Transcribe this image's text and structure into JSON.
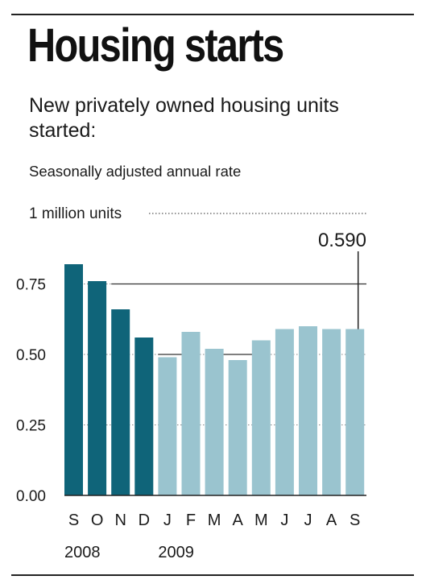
{
  "chart_data": {
    "type": "bar",
    "title": "Housing starts",
    "subtitle": "New privately owned housing units started:",
    "note": "Seasonally adjusted annual rate",
    "top_label": "1 million units",
    "categories": [
      "S",
      "O",
      "N",
      "D",
      "J",
      "F",
      "M",
      "A",
      "M",
      "J",
      "J",
      "A",
      "S"
    ],
    "year_labels": [
      "2008",
      "2009"
    ],
    "values": [
      0.82,
      0.76,
      0.66,
      0.56,
      0.49,
      0.58,
      0.52,
      0.48,
      0.55,
      0.59,
      0.6,
      0.59,
      0.59
    ],
    "annotation": {
      "label": "0.590",
      "category_index": 12
    },
    "yticks": [
      {
        "value": 0.75,
        "label": "0.75"
      },
      {
        "value": 0.5,
        "label": "0.50"
      },
      {
        "value": 0.25,
        "label": "0.25"
      },
      {
        "value": 0.0,
        "label": "0.00"
      }
    ],
    "ylim": [
      0,
      1
    ],
    "grid": true,
    "colors": {
      "2008": "#0f6479",
      "2009": "#9ac4cf",
      "ink": "#1a1a1a"
    }
  }
}
